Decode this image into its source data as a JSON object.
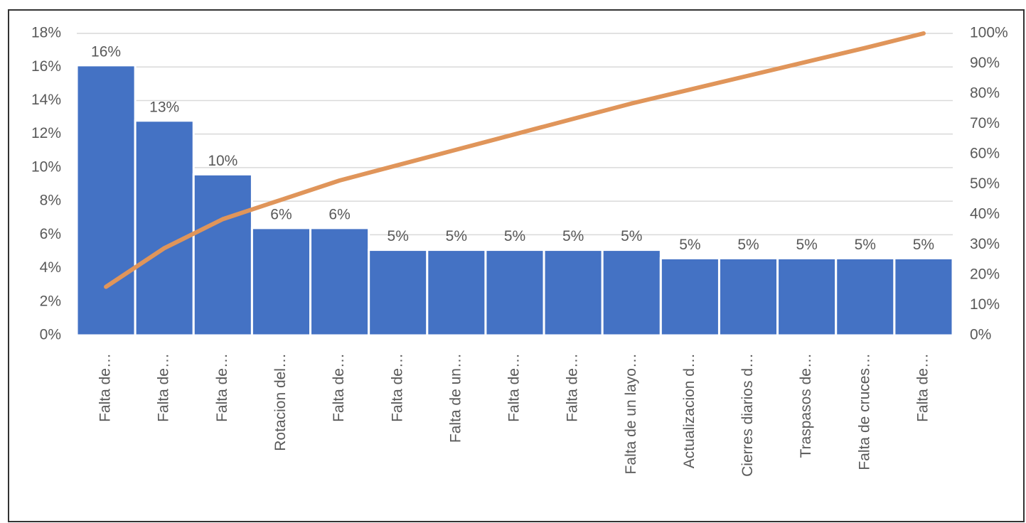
{
  "chart_data": {
    "type": "bar",
    "categories": [
      "Falta de…",
      "Falta de…",
      "Falta de…",
      "Rotacion del…",
      "Falta de…",
      "Falta de…",
      "Falta de un…",
      "Falta de…",
      "Falta de…",
      "Falta de un layo…",
      "Actualizacion d…",
      "Cierres diarios d…",
      "Traspasos de…",
      "Falta de cruces…",
      "Falta de…"
    ],
    "series": [
      {
        "type": "bar",
        "color": "#4472c4",
        "values": [
          16.1,
          12.8,
          9.6,
          6.4,
          6.4,
          5.1,
          5.1,
          5.1,
          5.1,
          5.1,
          4.6,
          4.6,
          4.6,
          4.6,
          4.6
        ],
        "value_labels": [
          "16%",
          "13%",
          "10%",
          "6%",
          "6%",
          "5%",
          "5%",
          "5%",
          "5%",
          "5%",
          "5%",
          "5%",
          "5%",
          "5%",
          "5%"
        ]
      },
      {
        "type": "line",
        "axis": "y2",
        "color": "#e0955a",
        "values": [
          16.1,
          28.9,
          38.5,
          44.9,
          51.3,
          56.4,
          61.5,
          66.6,
          71.7,
          76.8,
          81.4,
          86.0,
          90.6,
          95.2,
          100
        ]
      }
    ],
    "ylim": [
      0,
      18
    ],
    "yticks": [
      {
        "value": 0,
        "label": "0%"
      },
      {
        "value": 2,
        "label": "2%"
      },
      {
        "value": 4,
        "label": "4%"
      },
      {
        "value": 6,
        "label": "6%"
      },
      {
        "value": 8,
        "label": "8%"
      },
      {
        "value": 10,
        "label": "10%"
      },
      {
        "value": 12,
        "label": "12%"
      },
      {
        "value": 14,
        "label": "14%"
      },
      {
        "value": 16,
        "label": "16%"
      },
      {
        "value": 18,
        "label": "18%"
      }
    ],
    "y2lim": [
      0,
      100
    ],
    "y2ticks": [
      {
        "value": 0,
        "label": "0%"
      },
      {
        "value": 10,
        "label": "10%"
      },
      {
        "value": 20,
        "label": "20%"
      },
      {
        "value": 30,
        "label": "30%"
      },
      {
        "value": 40,
        "label": "40%"
      },
      {
        "value": 50,
        "label": "50%"
      },
      {
        "value": 60,
        "label": "60%"
      },
      {
        "value": 70,
        "label": "70%"
      },
      {
        "value": 80,
        "label": "80%"
      },
      {
        "value": 90,
        "label": "90%"
      },
      {
        "value": 100,
        "label": "100%"
      }
    ],
    "grid": true
  }
}
